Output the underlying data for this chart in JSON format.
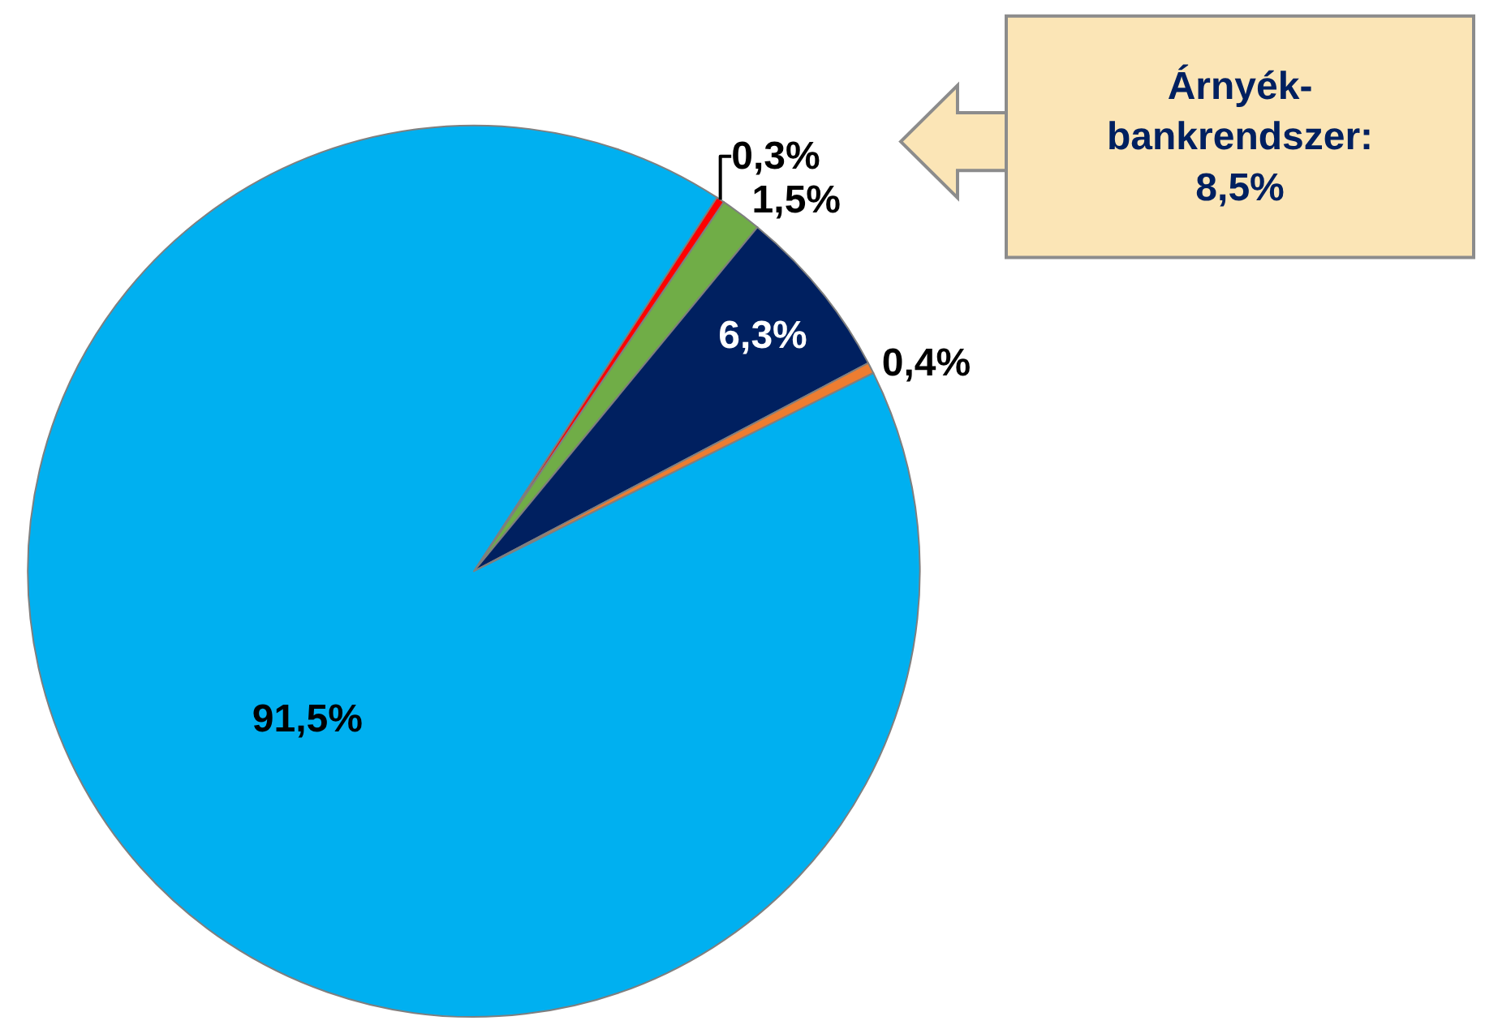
{
  "chart_data": {
    "type": "pie",
    "categories": [
      null,
      null,
      null,
      null,
      null
    ],
    "values": [
      0.3,
      1.5,
      6.3,
      0.4,
      91.5
    ],
    "colors": [
      "#ff0000",
      "#70ad47",
      "#002060",
      "#ed7d31",
      "#00b0f0"
    ],
    "value_labels": [
      "0,3%",
      "1,5%",
      "6,3%",
      "0,4%",
      "91,5%"
    ],
    "annotations": [
      "Árnyék-\nbankrendszer:\n8,5%"
    ],
    "legend": false
  }
}
